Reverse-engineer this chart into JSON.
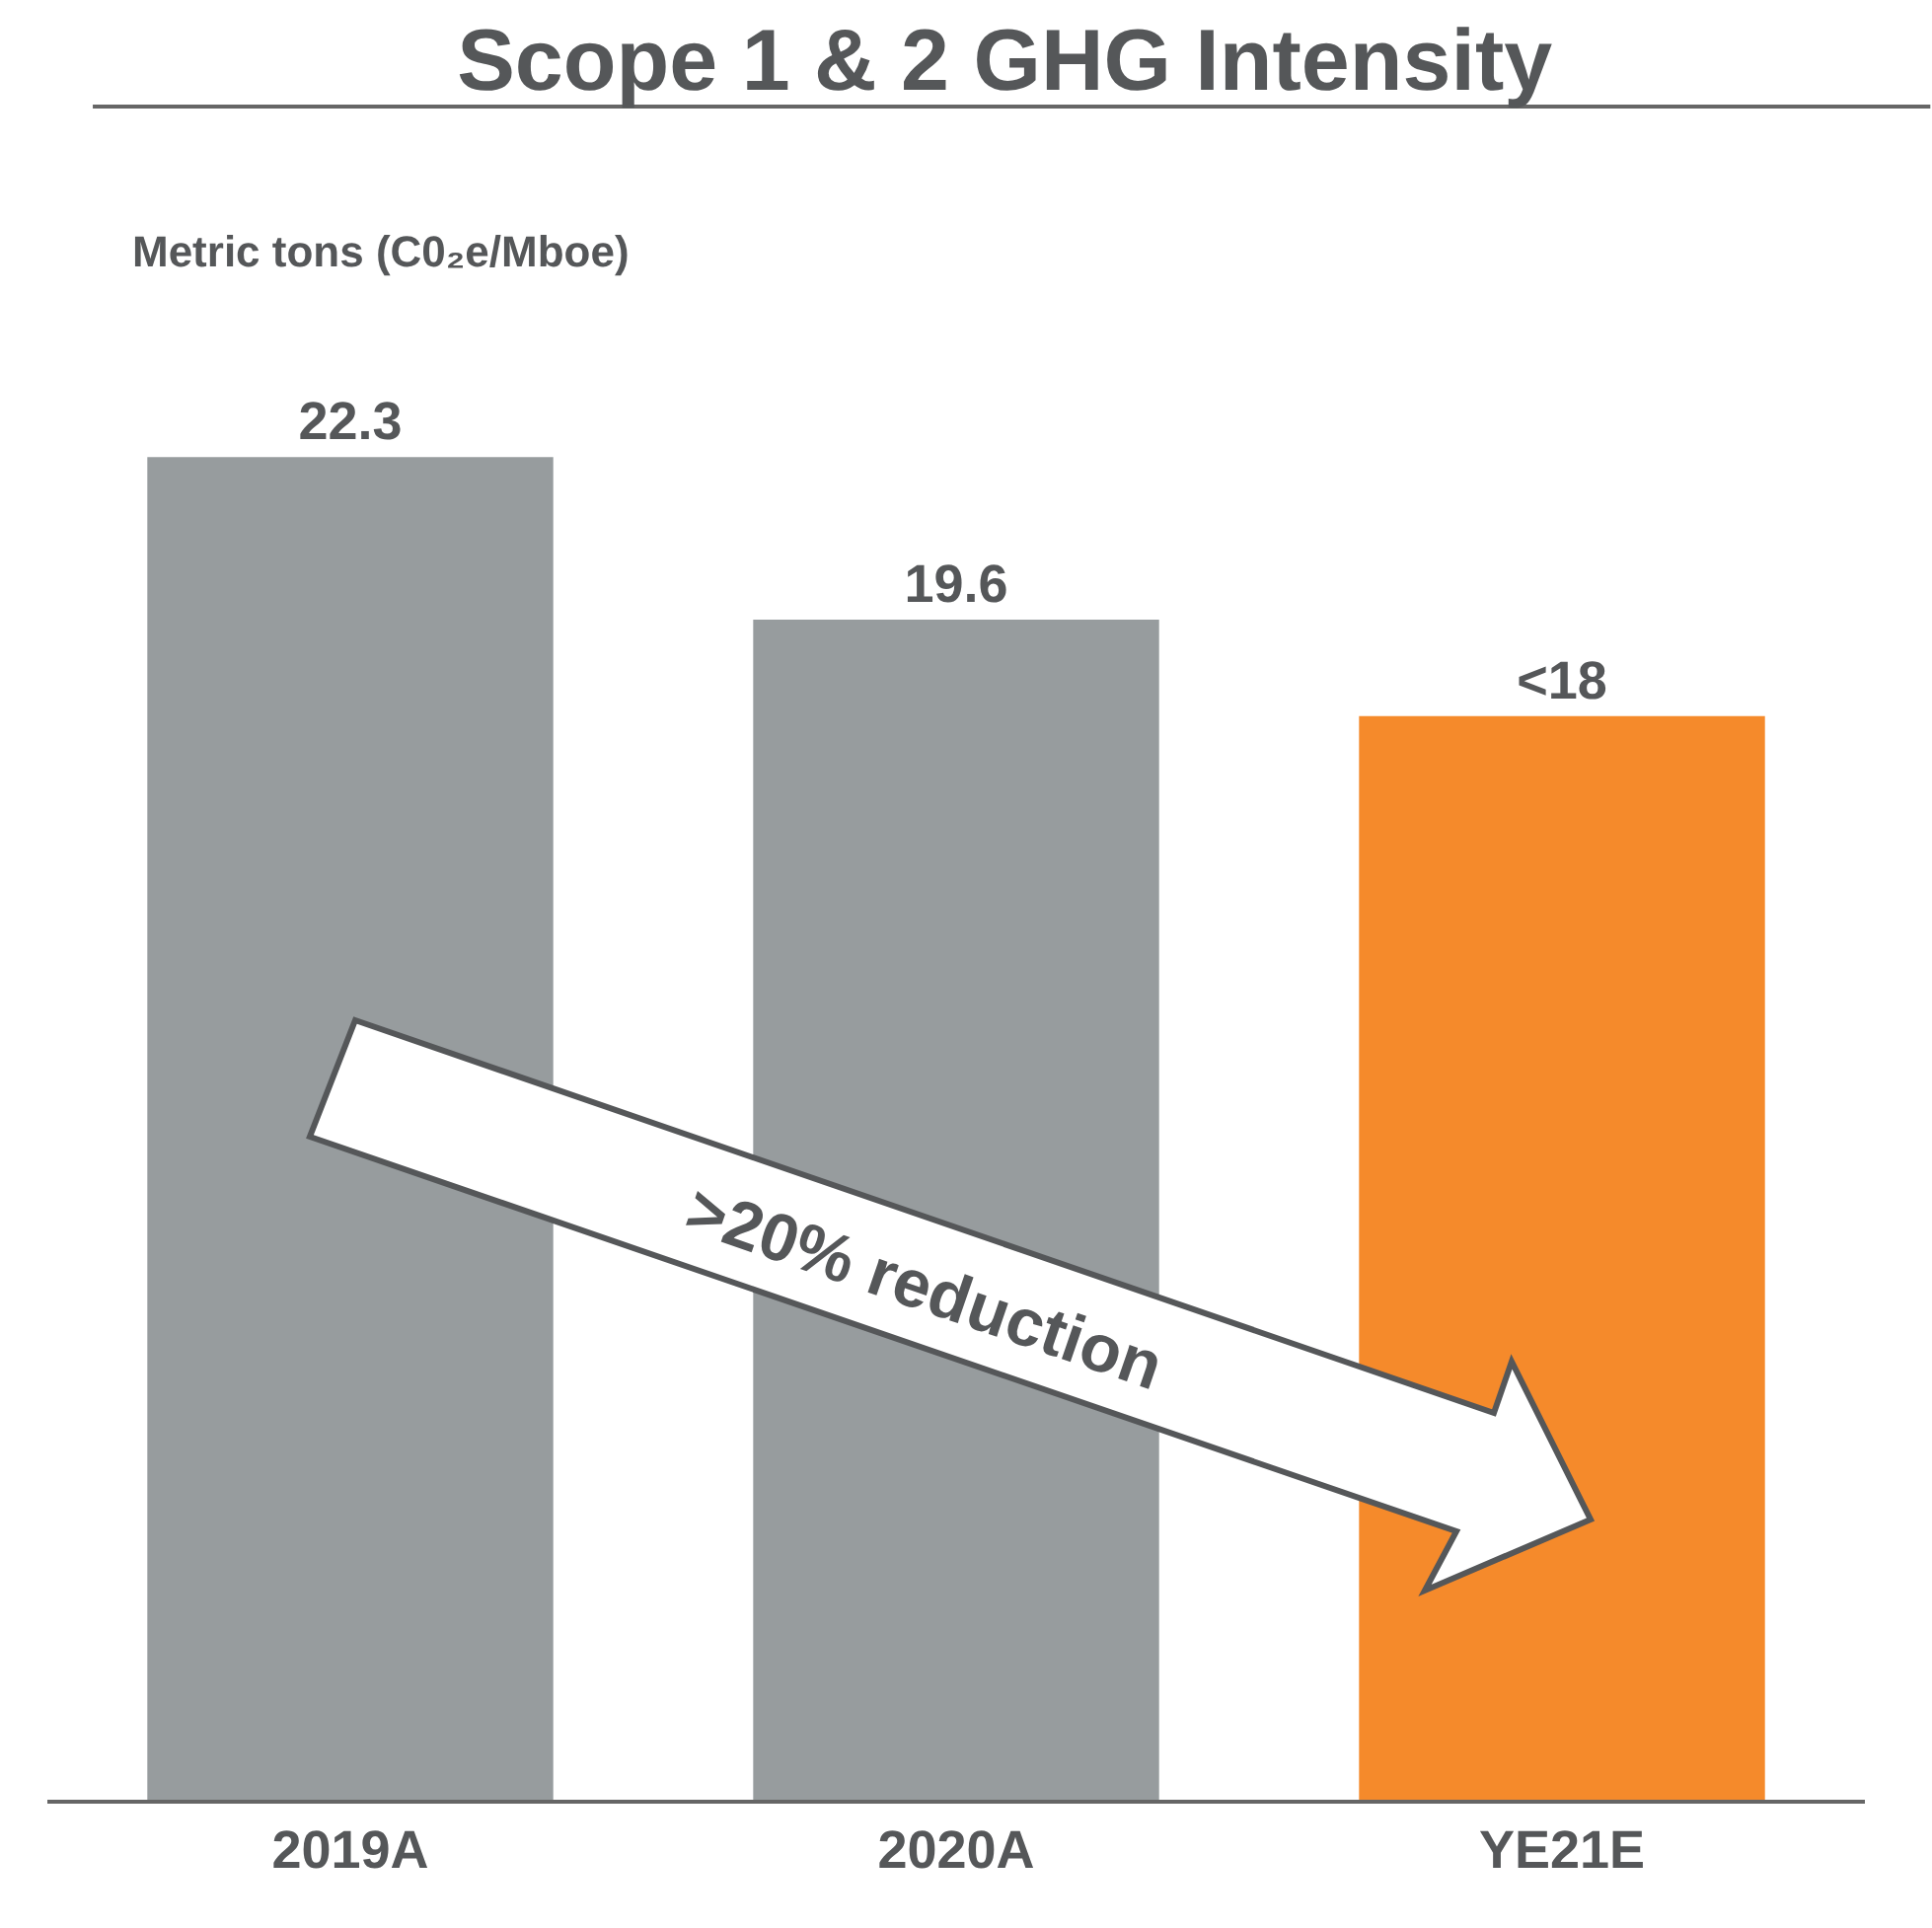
{
  "chart_data": {
    "type": "bar",
    "title": "Scope 1 & 2 GHG Intensity",
    "categories": [
      "2019A",
      "2020A",
      "YE21E"
    ],
    "values": [
      22.3,
      19.6,
      18
    ],
    "value_labels": [
      "22.3",
      "19.6",
      "<18"
    ],
    "colors": [
      "#979c9e",
      "#979c9e",
      "#f58a2b"
    ],
    "annotations": [
      "Metric tons (C0₂e/Mboe)",
      ">20% reduction"
    ]
  }
}
